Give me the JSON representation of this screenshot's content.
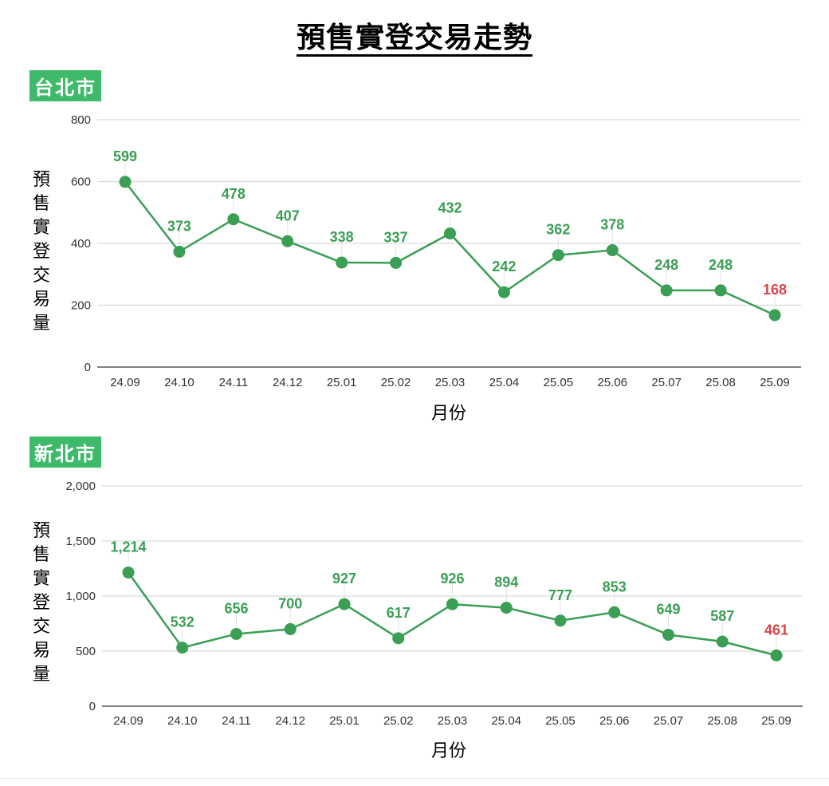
{
  "page": {
    "title": "預售實登交易走勢"
  },
  "colors": {
    "line": "#3a9e55",
    "label_green": "#3a9e55",
    "label_red": "#d9434a",
    "city_badge": "#3dba6a",
    "grid": "#d9d9d9",
    "axis": "#555555"
  },
  "chart_data": [
    {
      "type": "line",
      "badge": "台北市",
      "title": "",
      "xlabel": "月份",
      "ylabel": "預售實登交易量",
      "categories": [
        "24.09",
        "24.10",
        "24.11",
        "24.12",
        "25.01",
        "25.02",
        "25.03",
        "25.04",
        "25.05",
        "25.06",
        "25.07",
        "25.08",
        "25.09"
      ],
      "values": [
        599,
        373,
        478,
        407,
        338,
        337,
        432,
        242,
        362,
        378,
        248,
        248,
        168
      ],
      "value_labels": [
        "599",
        "373",
        "478",
        "407",
        "338",
        "337",
        "432",
        "242",
        "362",
        "378",
        "248",
        "248",
        "168"
      ],
      "highlight_last": true,
      "ylim": [
        0,
        800
      ],
      "yticks": [
        0,
        200,
        400,
        600,
        800
      ],
      "ytick_labels": [
        "0",
        "200",
        "400",
        "600",
        "800"
      ],
      "grid": true
    },
    {
      "type": "line",
      "badge": "新北市",
      "title": "",
      "xlabel": "月份",
      "ylabel": "預售實登交易量",
      "categories": [
        "24.09",
        "24.10",
        "24.11",
        "24.12",
        "25.01",
        "25.02",
        "25.03",
        "25.04",
        "25.05",
        "25.06",
        "25.07",
        "25.08",
        "25.09"
      ],
      "values": [
        1214,
        532,
        656,
        700,
        927,
        617,
        926,
        894,
        777,
        853,
        649,
        587,
        461
      ],
      "value_labels": [
        "1,214",
        "532",
        "656",
        "700",
        "927",
        "617",
        "926",
        "894",
        "777",
        "853",
        "649",
        "587",
        "461"
      ],
      "highlight_last": true,
      "ylim": [
        0,
        2000
      ],
      "yticks": [
        0,
        500,
        1000,
        1500,
        2000
      ],
      "ytick_labels": [
        "0",
        "500",
        "1,000",
        "1,500",
        "2,000"
      ],
      "grid": true
    }
  ]
}
